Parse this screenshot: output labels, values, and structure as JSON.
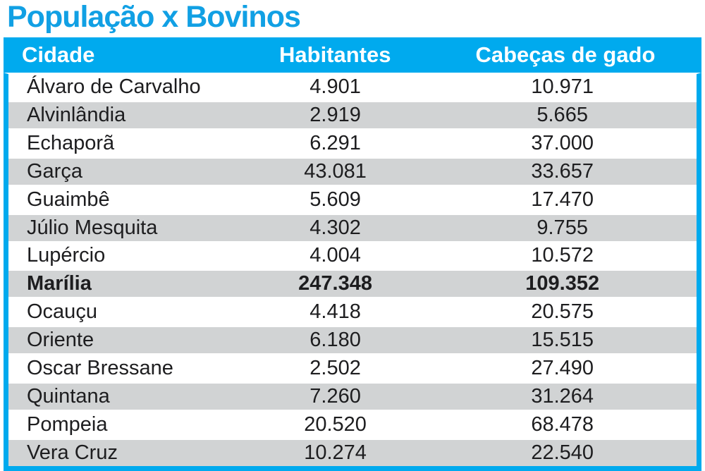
{
  "title": "População x Bovinos",
  "colors": {
    "accent_blue": "#00aaee",
    "title_blue": "#11a0e4",
    "row_alt_gray": "#d1d3d4",
    "body_text": "#1d1d1f",
    "header_text": "#ffffff"
  },
  "chart_data": {
    "type": "table",
    "title": "População x Bovinos",
    "columns": [
      "Cidade",
      "Habitantes",
      "Cabeças de gado"
    ],
    "rows": [
      [
        "Álvaro de Carvalho",
        "4.901",
        "10.971"
      ],
      [
        "Alvinlândia",
        "2.919",
        "5.665"
      ],
      [
        "Echaporã",
        "6.291",
        "37.000"
      ],
      [
        "Garça",
        "43.081",
        "33.657"
      ],
      [
        "Guaimbê",
        "5.609",
        "17.470"
      ],
      [
        "Júlio Mesquita",
        "4.302",
        "9.755"
      ],
      [
        "Lupércio",
        "4.004",
        "10.572"
      ],
      [
        "Marília",
        "247.348",
        "109.352"
      ],
      [
        "Ocauçu",
        "4.418",
        "20.575"
      ],
      [
        "Oriente",
        "6.180",
        "15.515"
      ],
      [
        "Oscar Bressane",
        "2.502",
        "27.490"
      ],
      [
        "Quintana",
        "7.260",
        "31.264"
      ],
      [
        "Pompeia",
        "20.520",
        "68.478"
      ],
      [
        "Vera Cruz",
        "10.274",
        "22.540"
      ]
    ],
    "highlighted_row": "Marília",
    "layout_hints": "rows alternate white and light gray; highlighted row is bold; cyan border around table body"
  }
}
